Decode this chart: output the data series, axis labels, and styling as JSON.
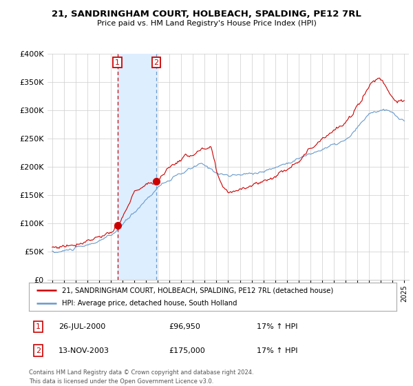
{
  "title": "21, SANDRINGHAM COURT, HOLBEACH, SPALDING, PE12 7RL",
  "subtitle": "Price paid vs. HM Land Registry's House Price Index (HPI)",
  "legend_line1": "21, SANDRINGHAM COURT, HOLBEACH, SPALDING, PE12 7RL (detached house)",
  "legend_line2": "HPI: Average price, detached house, South Holland",
  "transaction1_date": "26-JUL-2000",
  "transaction1_price": "£96,950",
  "transaction1_hpi": "17% ↑ HPI",
  "transaction2_date": "13-NOV-2003",
  "transaction2_price": "£175,000",
  "transaction2_hpi": "17% ↑ HPI",
  "footer1": "Contains HM Land Registry data © Crown copyright and database right 2024.",
  "footer2": "This data is licensed under the Open Government Licence v3.0.",
  "red_color": "#cc0000",
  "blue_color": "#6699cc",
  "shade_color": "#ddeeff",
  "grid_color": "#cccccc",
  "bg_color": "#ffffff",
  "ylim_min": 0,
  "ylim_max": 400000,
  "yticks": [
    0,
    50000,
    100000,
    150000,
    200000,
    250000,
    300000,
    350000,
    400000
  ],
  "transaction1_x": 2000.57,
  "transaction2_x": 2003.87,
  "transaction1_y": 96950,
  "transaction2_y": 175000,
  "xlim_min": 1994.6,
  "xlim_max": 2025.4
}
